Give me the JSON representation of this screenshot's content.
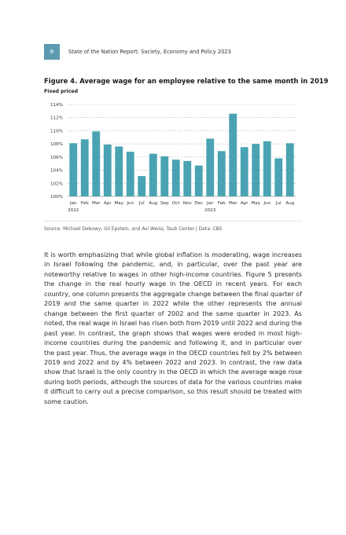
{
  "header": {
    "page_number": "8",
    "running_title": "State of the Nation Report: Society, Economy and Policy 2023"
  },
  "figure": {
    "title": "Figure 4. Average wage for an employee relative to the same month in 2019",
    "subtitle": "Fixed priced",
    "source": "Source: Michael Debowy, Gil Epstein, and Avi Weiss, Taub Center | Data: CBS"
  },
  "chart_data": {
    "type": "bar",
    "categories": [
      "Jan",
      "Feb",
      "Mar",
      "Apr",
      "May",
      "Jun",
      "Jul",
      "Aug",
      "Sep",
      "Oct",
      "Nov",
      "Dec",
      "Jan",
      "Feb",
      "Mar",
      "Apr",
      "May",
      "Jun",
      "Jul",
      "Aug"
    ],
    "year_labels": [
      {
        "index": 0,
        "label": "2022"
      },
      {
        "index": 12,
        "label": "2023"
      }
    ],
    "values": [
      108.1,
      108.7,
      109.9,
      107.9,
      107.6,
      106.8,
      103.1,
      106.5,
      106.1,
      105.6,
      105.4,
      104.7,
      108.8,
      106.9,
      112.6,
      107.5,
      108.0,
      108.4,
      105.8,
      108.1
    ],
    "yticks": [
      "100%",
      "102%",
      "104%",
      "106%",
      "108%",
      "110%",
      "112%",
      "114%"
    ],
    "ylim": [
      100,
      114
    ],
    "grid": true,
    "bar_color": "#4aa3b2",
    "title": "",
    "xlabel": "",
    "ylabel": ""
  },
  "body": {
    "paragraph": "It is worth emphasizing that while global inflation is moderating, wage increases in Israel following the pandemic, and, in particular, over the past year are noteworthy relative to wages in other high-income countries. Figure 5 presents the change in the real hourly wage in the OECD in recent years. For each country, one column presents the aggregate change between the final quarter of 2019 and the same quarter in 2022 while the other represents the annual change between the first quarter of 2002 and the same quarter in 2023. As noted, the real wage in Israel has risen both from 2019 until 2022 and during the past year. In contrast, the graph shows that wages were eroded in most high-income countries during the pandemic and following it, and in particular over the past year. Thus, the average wage in the OECD countries fell by 2% between 2019 and 2022 and by 4% between 2022 and 2023. In contrast, the raw data show that Israel is the only country in the OECD in which the average wage rose during both periods, although the sources of data for the various countries make it difficult to carry out a precise comparison, so this result should be treated with some caution."
  }
}
